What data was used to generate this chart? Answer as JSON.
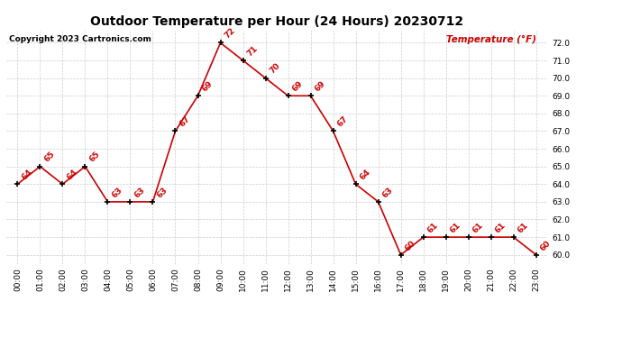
{
  "title": "Outdoor Temperature per Hour (24 Hours) 20230712",
  "copyright": "Copyright 2023 Cartronics.com",
  "legend_label": "Temperature (°F)",
  "hours": [
    0,
    1,
    2,
    3,
    4,
    5,
    6,
    7,
    8,
    9,
    10,
    11,
    12,
    13,
    14,
    15,
    16,
    17,
    18,
    19,
    20,
    21,
    22,
    23
  ],
  "temps": [
    64,
    65,
    64,
    65,
    63,
    63,
    63,
    67,
    69,
    72,
    71,
    70,
    69,
    69,
    67,
    64,
    63,
    60,
    61,
    61,
    61,
    61,
    61,
    60
  ],
  "hour_labels": [
    "00:00",
    "01:00",
    "02:00",
    "03:00",
    "04:00",
    "05:00",
    "06:00",
    "07:00",
    "08:00",
    "09:00",
    "10:00",
    "11:00",
    "12:00",
    "13:00",
    "14:00",
    "15:00",
    "16:00",
    "17:00",
    "18:00",
    "19:00",
    "20:00",
    "21:00",
    "22:00",
    "23:00"
  ],
  "line_color": "#cc0000",
  "marker_color": "#000000",
  "label_color": "#cc0000",
  "title_color": "#000000",
  "copyright_color": "#000000",
  "legend_color": "#cc0000",
  "grid_color": "#cccccc",
  "bg_color": "#ffffff",
  "ylim_min": 59.5,
  "ylim_max": 72.7,
  "ytick_min": 60.0,
  "ytick_max": 72.0,
  "ytick_step": 1.0,
  "title_fontsize": 10,
  "label_fontsize": 6.5,
  "tick_fontsize": 6.5,
  "copyright_fontsize": 6.5,
  "legend_fontsize": 7.5
}
